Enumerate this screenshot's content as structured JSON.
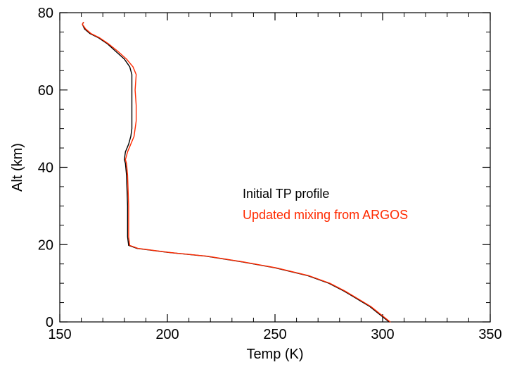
{
  "chart_data": {
    "type": "line",
    "title": "",
    "xlabel": "Temp (K)",
    "ylabel": "Alt (km)",
    "xlim": [
      150,
      350
    ],
    "ylim": [
      0,
      80
    ],
    "xticks": [
      150,
      200,
      250,
      300,
      350
    ],
    "yticks": [
      0,
      20,
      40,
      60,
      80
    ],
    "xtick_labels": [
      "150",
      "200",
      "250",
      "300",
      "350"
    ],
    "ytick_labels": [
      "0",
      "20",
      "40",
      "60",
      "80"
    ],
    "x_minor_step": 10,
    "y_minor_step": 5,
    "grid": false,
    "legend_position": "center-right",
    "series": [
      {
        "name": "Initial TP profile",
        "color": "#000000",
        "points": [
          [
            303,
            0
          ],
          [
            298.5,
            2
          ],
          [
            294,
            4
          ],
          [
            288,
            6
          ],
          [
            282,
            8
          ],
          [
            275,
            10
          ],
          [
            265,
            12
          ],
          [
            250,
            14
          ],
          [
            235,
            15.5
          ],
          [
            218,
            17
          ],
          [
            200,
            18
          ],
          [
            186,
            19
          ],
          [
            182,
            19.8
          ],
          [
            181.5,
            22
          ],
          [
            181.5,
            30
          ],
          [
            181,
            38
          ],
          [
            180.5,
            41
          ],
          [
            180,
            42
          ],
          [
            180.5,
            44
          ],
          [
            182,
            46
          ],
          [
            183,
            48
          ],
          [
            183.5,
            50
          ],
          [
            183.5,
            55
          ],
          [
            183.5,
            60
          ],
          [
            183.5,
            64
          ],
          [
            182.5,
            66
          ],
          [
            180,
            68
          ],
          [
            176,
            70
          ],
          [
            172,
            72
          ],
          [
            168,
            73.5
          ],
          [
            164,
            74.6
          ],
          [
            161.5,
            75.8
          ],
          [
            160.5,
            77
          ],
          [
            161,
            77.5
          ]
        ]
      },
      {
        "name": "Updated mixing from ARGOS",
        "color": "#ff2a00",
        "points": [
          [
            303.5,
            0
          ],
          [
            299,
            2
          ],
          [
            294.5,
            4
          ],
          [
            288.5,
            6
          ],
          [
            282.5,
            8
          ],
          [
            275.5,
            10
          ],
          [
            265.5,
            12
          ],
          [
            250.5,
            14
          ],
          [
            235.5,
            15.5
          ],
          [
            218.5,
            17
          ],
          [
            200.5,
            18
          ],
          [
            186.5,
            19
          ],
          [
            182.5,
            19.8
          ],
          [
            182,
            22
          ],
          [
            182,
            30
          ],
          [
            181.5,
            38
          ],
          [
            181,
            41
          ],
          [
            180.5,
            42
          ],
          [
            181.5,
            44
          ],
          [
            183,
            46
          ],
          [
            184.5,
            48
          ],
          [
            185.5,
            52
          ],
          [
            185.5,
            56
          ],
          [
            185,
            60
          ],
          [
            185.5,
            64
          ],
          [
            184,
            66
          ],
          [
            181,
            68
          ],
          [
            177,
            70
          ],
          [
            172.5,
            72
          ],
          [
            168.5,
            73.5
          ],
          [
            164.5,
            74.6
          ],
          [
            162,
            75.8
          ],
          [
            160.5,
            77
          ],
          [
            161,
            77.5
          ]
        ]
      }
    ]
  }
}
